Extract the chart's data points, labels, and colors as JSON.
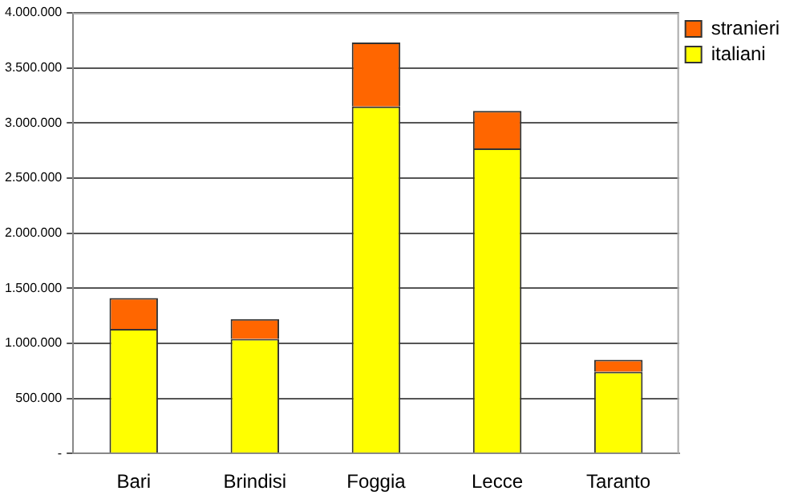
{
  "chart_data": {
    "type": "bar",
    "stacked": true,
    "categories": [
      "Bari",
      "Brindisi",
      "Foggia",
      "Lecce",
      "Taranto"
    ],
    "series": [
      {
        "name": "italiani",
        "color": "#ffff00",
        "values": [
          1130000,
          1040000,
          3150000,
          2770000,
          740000
        ]
      },
      {
        "name": "stranieri",
        "color": "#ff6600",
        "values": [
          280000,
          180000,
          580000,
          340000,
          110000
        ]
      }
    ],
    "ylim": [
      0,
      4000000
    ],
    "yticks": [
      {
        "value": 0,
        "label": "-"
      },
      {
        "value": 500000,
        "label": "500.000"
      },
      {
        "value": 1000000,
        "label": "1.000.000"
      },
      {
        "value": 1500000,
        "label": "1.500.000"
      },
      {
        "value": 2000000,
        "label": "2.000.000"
      },
      {
        "value": 2500000,
        "label": "2.500.000"
      },
      {
        "value": 3000000,
        "label": "3.000.000"
      },
      {
        "value": 3500000,
        "label": "3.500.000"
      },
      {
        "value": 4000000,
        "label": "4.000.000"
      }
    ],
    "grid": "y",
    "legend": "top right"
  }
}
